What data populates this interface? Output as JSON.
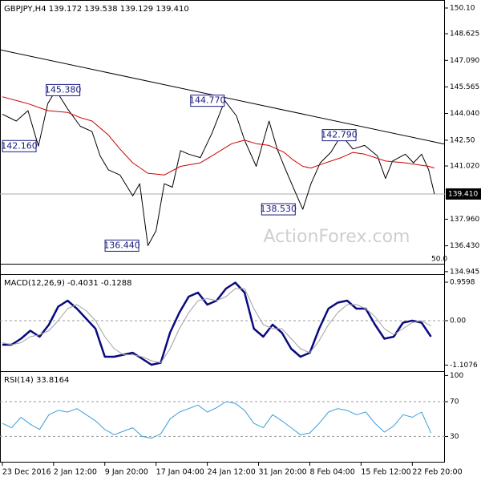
{
  "chart_data": [
    {
      "type": "line",
      "title": "GBPJPY,H4  139.172 139.538 139.129 139.410",
      "watermark": "ActionForex.com",
      "note": "50.0",
      "xlim": [
        -2,
        380
      ],
      "ylim": [
        134.8,
        150.56
      ],
      "yticks": [
        {
          "value": 150.1,
          "label": "150.10"
        },
        148.625,
        {
          "value": 147.09,
          "label": "147.090"
        },
        145.565,
        {
          "value": 144.04,
          "label": "144.040"
        },
        {
          "value": 142.5,
          "label": "142.50"
        },
        {
          "value": 141.02,
          "label": "141.020"
        },
        {
          "value": 137.96,
          "label": "137.960"
        },
        {
          "value": 136.43,
          "label": "136.430"
        },
        134.945
      ],
      "current_price": {
        "value": 139.41,
        "label": "139.410"
      },
      "series": [
        {
          "color": "#000000",
          "width": 1,
          "x": [
            0,
            12,
            22,
            31,
            39,
            46,
            56,
            67,
            77,
            84,
            91,
            101,
            112,
            118,
            125,
            132,
            139,
            146,
            153,
            160,
            170,
            180,
            191,
            201,
            208,
            218,
            229,
            236,
            242,
            249,
            258,
            265,
            273,
            282,
            291,
            301,
            311,
            322,
            329,
            335,
            346,
            353,
            360,
            366,
            371
          ],
          "values": [
            144.0,
            143.6,
            144.2,
            142.16,
            144.6,
            145.38,
            144.3,
            143.3,
            143.0,
            141.6,
            140.8,
            140.5,
            139.3,
            140.0,
            136.44,
            137.3,
            140.0,
            139.8,
            141.9,
            141.7,
            141.5,
            142.9,
            144.77,
            143.9,
            142.5,
            141.0,
            143.6,
            142.0,
            141.0,
            139.9,
            138.53,
            140.0,
            141.2,
            141.8,
            142.79,
            142.0,
            142.2,
            141.6,
            140.3,
            141.3,
            141.7,
            141.2,
            141.7,
            140.8,
            139.41
          ]
        },
        {
          "color": "#cc0000",
          "width": 1,
          "x": [
            0,
            22,
            39,
            56,
            67,
            77,
            91,
            101,
            112,
            125,
            139,
            153,
            170,
            180,
            197,
            208,
            218,
            229,
            242,
            249,
            258,
            265,
            273,
            291,
            301,
            311,
            329,
            346,
            366,
            371
          ],
          "values": [
            145.0,
            144.6,
            144.2,
            144.1,
            143.8,
            143.6,
            142.8,
            142.0,
            141.2,
            140.6,
            140.5,
            141.0,
            141.2,
            141.6,
            142.3,
            142.5,
            142.3,
            142.2,
            141.8,
            141.4,
            141.0,
            140.9,
            141.1,
            141.5,
            141.8,
            141.7,
            141.3,
            141.2,
            141.0,
            140.9
          ]
        },
        {
          "color": "#000000",
          "width": 1,
          "x": [
            -2,
            380
          ],
          "values": [
            147.7,
            142.27
          ]
        }
      ],
      "annotations": [
        {
          "value": 145.38,
          "label": "145.380",
          "x": 48
        },
        {
          "value": 142.16,
          "label": "142.160",
          "x": 29
        },
        {
          "value": 144.77,
          "label": "144.770",
          "x": 194
        },
        {
          "value": 142.79,
          "label": "142.790",
          "x": 294
        },
        {
          "value": 138.53,
          "label": "138.530",
          "x": 257
        },
        {
          "value": 136.44,
          "label": "136.440",
          "x": 124
        }
      ]
    },
    {
      "type": "line",
      "title": "MACD(12,26,9) -0.4031 -0.1288",
      "xlim": [
        -2,
        380
      ],
      "ylim": [
        -1.26,
        1.16
      ],
      "yticks": [
        0.9598,
        {
          "value": 0,
          "label": "0.00"
        },
        -1.1076
      ],
      "levels": [
        0
      ],
      "series": [
        {
          "color": "#0a0a80",
          "width": 2.5,
          "x": [
            0,
            8,
            16,
            24,
            32,
            40,
            48,
            56,
            64,
            72,
            80,
            88,
            96,
            104,
            112,
            120,
            128,
            136,
            144,
            152,
            160,
            168,
            176,
            184,
            192,
            200,
            208,
            216,
            224,
            232,
            240,
            248,
            256,
            264,
            272,
            280,
            288,
            296,
            304,
            312,
            320,
            328,
            336,
            344,
            352,
            360,
            368
          ],
          "values": [
            -0.6,
            -0.6,
            -0.45,
            -0.25,
            -0.4,
            -0.1,
            0.35,
            0.5,
            0.3,
            0.05,
            -0.2,
            -0.9,
            -0.9,
            -0.85,
            -0.8,
            -0.95,
            -1.1,
            -1.05,
            -0.3,
            0.2,
            0.6,
            0.7,
            0.4,
            0.5,
            0.8,
            0.95,
            0.7,
            -0.2,
            -0.4,
            -0.1,
            -0.3,
            -0.7,
            -0.9,
            -0.8,
            -0.2,
            0.3,
            0.45,
            0.5,
            0.3,
            0.3,
            -0.1,
            -0.45,
            -0.4,
            -0.05,
            0.0,
            -0.05,
            -0.4
          ]
        },
        {
          "color": "#a0a0a0",
          "width": 1,
          "x": [
            0,
            8,
            16,
            24,
            32,
            40,
            48,
            56,
            64,
            72,
            80,
            88,
            96,
            104,
            112,
            120,
            128,
            136,
            144,
            152,
            160,
            168,
            176,
            184,
            192,
            200,
            208,
            216,
            224,
            232,
            240,
            248,
            256,
            264,
            272,
            280,
            288,
            296,
            304,
            312,
            320,
            328,
            336,
            344,
            352,
            360,
            368
          ],
          "values": [
            -0.55,
            -0.6,
            -0.55,
            -0.4,
            -0.35,
            -0.25,
            0.0,
            0.3,
            0.4,
            0.25,
            0.0,
            -0.4,
            -0.7,
            -0.85,
            -0.85,
            -0.9,
            -1.0,
            -1.05,
            -0.7,
            -0.2,
            0.2,
            0.5,
            0.55,
            0.5,
            0.6,
            0.8,
            0.8,
            0.3,
            -0.1,
            -0.2,
            -0.2,
            -0.45,
            -0.7,
            -0.8,
            -0.5,
            -0.1,
            0.2,
            0.4,
            0.4,
            0.3,
            0.1,
            -0.2,
            -0.35,
            -0.2,
            -0.05,
            0.0,
            -0.13
          ]
        }
      ]
    },
    {
      "type": "line",
      "title": "RSI(14) 33.8164",
      "xlim": [
        -2,
        380
      ],
      "ylim": [
        0,
        105
      ],
      "yticks": [
        100,
        70,
        30
      ],
      "levels": [
        70,
        30
      ],
      "xticks": [
        {
          "value": 0,
          "label": "23 Dec 2016"
        },
        {
          "value": 44,
          "label": "2 Jan 12:00"
        },
        {
          "value": 88,
          "label": "9 Jan 20:00"
        },
        {
          "value": 132,
          "label": "17 Jan 04:00"
        },
        {
          "value": 176,
          "label": "24 Jan 12:00"
        },
        {
          "value": 220,
          "label": "31 Jan 20:00"
        },
        {
          "value": 264,
          "label": "8 Feb 04:00"
        },
        {
          "value": 308,
          "label": "15 Feb 12:00"
        },
        {
          "value": 352,
          "label": "22 Feb 20:00"
        }
      ],
      "series": [
        {
          "color": "#3aa0dc",
          "width": 1,
          "x": [
            0,
            8,
            16,
            24,
            32,
            40,
            48,
            56,
            64,
            72,
            80,
            88,
            96,
            104,
            112,
            120,
            128,
            136,
            144,
            152,
            160,
            168,
            176,
            184,
            192,
            200,
            208,
            216,
            224,
            232,
            240,
            248,
            256,
            264,
            272,
            280,
            288,
            296,
            304,
            312,
            320,
            328,
            336,
            344,
            352,
            360,
            368
          ],
          "values": [
            45,
            40,
            52,
            44,
            38,
            55,
            60,
            58,
            62,
            55,
            48,
            38,
            32,
            36,
            40,
            30,
            28,
            33,
            50,
            58,
            62,
            66,
            58,
            63,
            70,
            68,
            60,
            45,
            40,
            55,
            48,
            40,
            32,
            34,
            45,
            58,
            62,
            60,
            55,
            58,
            45,
            35,
            42,
            55,
            52,
            58,
            34
          ]
        }
      ]
    }
  ]
}
